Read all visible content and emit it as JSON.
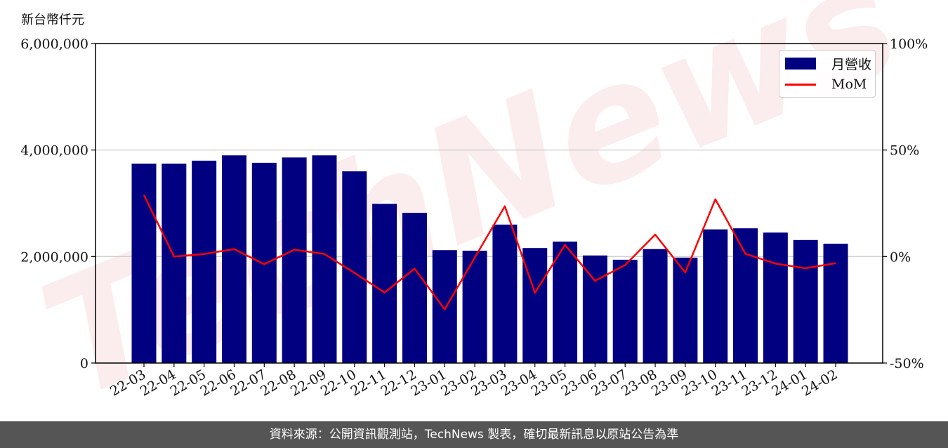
{
  "unit_label": "新台幣仟元",
  "watermark": "TechNews",
  "footer": "資料來源：公開資訊觀測站，TechNews 製表，確切最新訊息以原站公告為準",
  "colors": {
    "bar": "#000080",
    "line": "#ff0000",
    "grid": "#d0d0d0",
    "footer_bg": "#555555"
  },
  "chart_data": {
    "type": "bar+line",
    "categories": [
      "22-03",
      "22-04",
      "22-05",
      "22-06",
      "22-07",
      "22-08",
      "22-09",
      "22-10",
      "22-11",
      "22-12",
      "23-01",
      "23-02",
      "23-03",
      "23-04",
      "23-05",
      "23-06",
      "23-07",
      "23-08",
      "23-09",
      "23-10",
      "23-11",
      "23-12",
      "24-01",
      "24-02"
    ],
    "series": [
      {
        "name": "月營收",
        "type": "bar",
        "axis": "left",
        "values": [
          3745000,
          3745000,
          3800000,
          3900000,
          3760000,
          3860000,
          3900000,
          3600000,
          2990000,
          2820000,
          2120000,
          2110000,
          2600000,
          2160000,
          2280000,
          2020000,
          1940000,
          2140000,
          1980000,
          2510000,
          2530000,
          2450000,
          2310000,
          2240000
        ]
      },
      {
        "name": "MoM",
        "type": "line",
        "axis": "right",
        "unit": "%",
        "values": [
          28.9,
          0.0,
          1.2,
          3.5,
          -3.6,
          3.2,
          1.2,
          -7.7,
          -16.9,
          -5.7,
          -24.8,
          -0.5,
          23.6,
          -17.0,
          5.5,
          -11.4,
          -4.0,
          10.3,
          -7.5,
          26.9,
          1.3,
          -3.3,
          -5.5,
          -3.1
        ]
      }
    ],
    "y_left": {
      "ylim": [
        0,
        6000000
      ],
      "ticks": [
        "0",
        "2,000,000",
        "4,000,000",
        "6,000,000"
      ],
      "tick_values": [
        0,
        2000000,
        4000000,
        6000000
      ]
    },
    "y_right": {
      "ylim": [
        -50,
        100
      ],
      "ticks": [
        "-50%",
        "0%",
        "50%",
        "100%"
      ],
      "tick_values": [
        -50,
        0,
        50,
        100
      ]
    },
    "grid": "horizontal",
    "legend_position": "top-right"
  }
}
